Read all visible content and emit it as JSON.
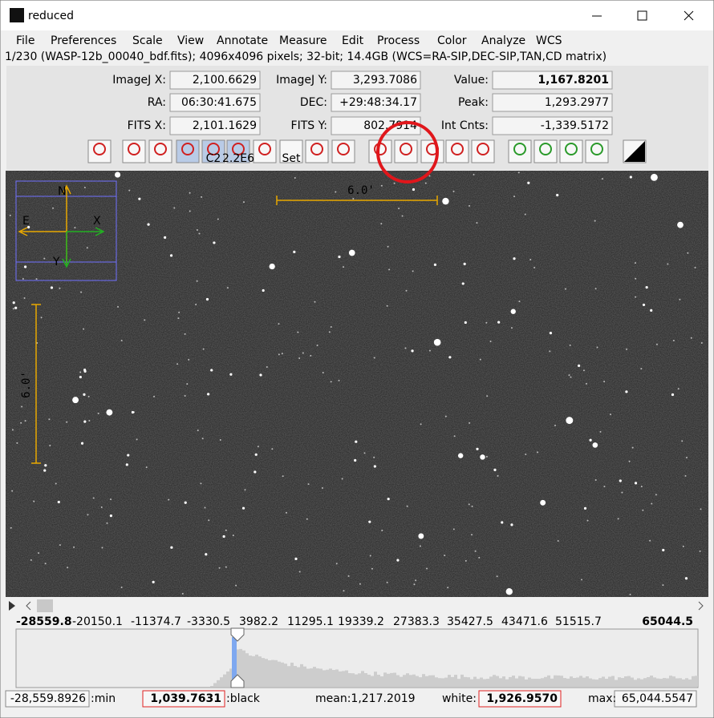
{
  "window": {
    "title": "reduced"
  },
  "menu": [
    "File",
    "Preferences",
    "Scale",
    "View",
    "Annotate",
    "Measure",
    "Edit",
    "Process",
    "Color",
    "Analyze",
    "WCS"
  ],
  "status": "1/230 (WASP-12b_00040_bdf.fits); 4096x4096 pixels; 32-bit; 14.4GB (WCS=RA-SIP,DEC-SIP,TAN,CD matrix)",
  "fields": [
    [
      {
        "label": "ImageJ X:",
        "value": "2,100.6629"
      },
      {
        "label": "ImageJ Y:",
        "value": "3,293.7086"
      },
      {
        "label": "Value:",
        "value": "1,167.8201"
      }
    ],
    [
      {
        "label": "RA:",
        "value": "06:30:41.675"
      },
      {
        "label": "DEC:",
        "value": "+29:48:34.17"
      },
      {
        "label": "Peak:",
        "value": "1,293.2977"
      }
    ],
    [
      {
        "label": "FITS X:",
        "value": "2,101.1629"
      },
      {
        "label": "FITS Y:",
        "value": "802.7914"
      },
      {
        "label": "Int Cnts:",
        "value": "-1,339.5172"
      }
    ]
  ],
  "toolbar": {
    "c2": "C2",
    "radius": "2.2E6",
    "set": "Set"
  },
  "image": {
    "scale_bar_label": "6.0'",
    "compass": {
      "north": "N",
      "east": "E",
      "x": "X",
      "y": "Y"
    }
  },
  "histogram": {
    "ticks": [
      "-28559.8",
      "-20150.1",
      "-11374.7",
      "-3330.5",
      "3982.2",
      "11295.1",
      "19339.2",
      "27383.3",
      "35427.5",
      "43471.6",
      "51515.7",
      "65044.5"
    ]
  },
  "stats": {
    "min_value": "-28,559.8926",
    "min_label": ":min",
    "black_value": "1,039.7631",
    "black_label": ":black",
    "mean": "mean:1,217.2019",
    "white_label": "white:",
    "white_value": "1,926.9570",
    "max_label": "max:",
    "max_value": "65,044.5547"
  }
}
